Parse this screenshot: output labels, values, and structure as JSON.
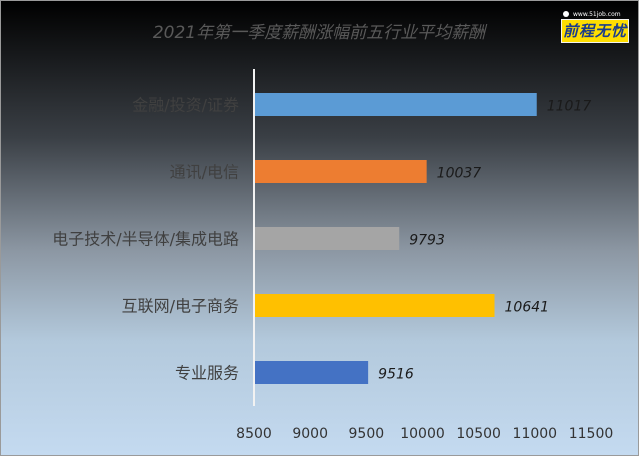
{
  "logo": {
    "url_text": "www.51job.com",
    "name": "前程无忧"
  },
  "chart_data": {
    "type": "bar",
    "orientation": "horizontal",
    "title": "2021年第一季度薪酬涨幅前五行业平均薪酬",
    "categories": [
      "金融/投资/证券",
      "通讯/电信",
      "电子技术/半导体/集成电路",
      "互联网/电子商务",
      "专业服务"
    ],
    "values": [
      11017,
      10037,
      9793,
      10641,
      9516
    ],
    "value_labels": [
      "11017",
      "10037",
      "9793",
      "10641",
      "9516"
    ],
    "colors": [
      "#5b9bd5",
      "#ed7d31",
      "#a5a5a5",
      "#ffc000",
      "#4472c4"
    ],
    "xlim": [
      8500,
      11500
    ],
    "xticks": [
      "8500",
      "9000",
      "9500",
      "10000",
      "10500",
      "11000",
      "11500"
    ],
    "grid": false,
    "legend": "none"
  }
}
